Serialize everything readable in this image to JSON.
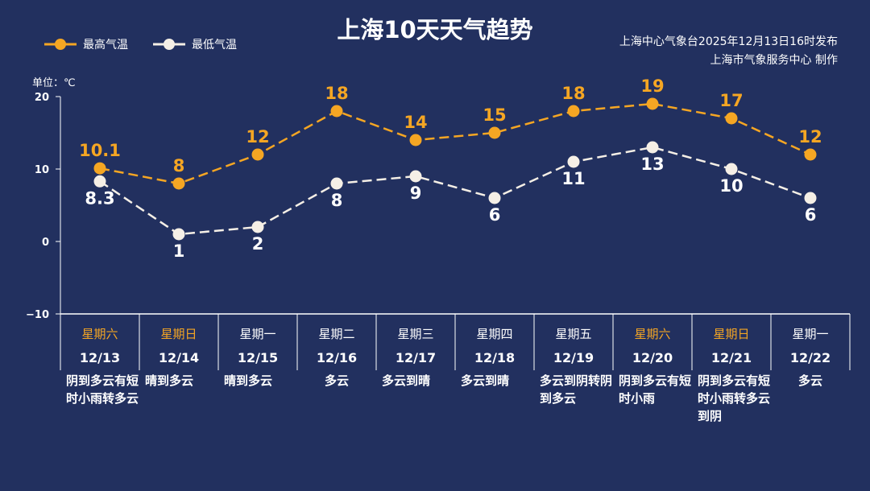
{
  "title": "上海10天天气趋势",
  "source_line1": "上海中心气象台2025年12月13日16时发布",
  "source_line2": "上海市气象服务中心  制作",
  "colors": {
    "background": "#22305f",
    "high": "#f5a623",
    "low": "#f5efe6",
    "weekend": "#f5a623"
  },
  "chart_data": {
    "type": "line",
    "ylabel": "单位：℃",
    "ylim": [
      -10,
      20
    ],
    "yticks": [
      "20",
      "10",
      "0",
      "−10"
    ],
    "legend_position": "top-left",
    "categories": [
      "12/13",
      "12/14",
      "12/15",
      "12/16",
      "12/17",
      "12/18",
      "12/19",
      "12/20",
      "12/21",
      "12/22"
    ],
    "weekdays": [
      "星期六",
      "星期日",
      "星期一",
      "星期二",
      "星期三",
      "星期四",
      "星期五",
      "星期六",
      "星期日",
      "星期一"
    ],
    "weekend": [
      true,
      true,
      false,
      false,
      false,
      false,
      false,
      true,
      true,
      false
    ],
    "weather": [
      "阴到多云有短时小雨转多云",
      "晴到多云",
      "晴到多云",
      "多云",
      "多云到晴",
      "多云到晴",
      "多云到阴转阴到多云",
      "阴到多云有短时小雨",
      "阴到多云有短时小雨转多云到阴",
      "多云"
    ],
    "series": [
      {
        "name": "最高气温",
        "values": [
          10.1,
          8,
          12,
          18,
          14,
          15,
          18,
          19,
          17,
          12
        ],
        "labels": [
          "10.1",
          "8",
          "12",
          "18",
          "14",
          "15",
          "18",
          "19",
          "17",
          "12"
        ]
      },
      {
        "name": "最低气温",
        "values": [
          8.3,
          1,
          2,
          8,
          9,
          6,
          11,
          13,
          10,
          6
        ],
        "labels": [
          "8.3",
          "1",
          "2",
          "8",
          "9",
          "6",
          "11",
          "13",
          "10",
          "6"
        ]
      }
    ]
  }
}
